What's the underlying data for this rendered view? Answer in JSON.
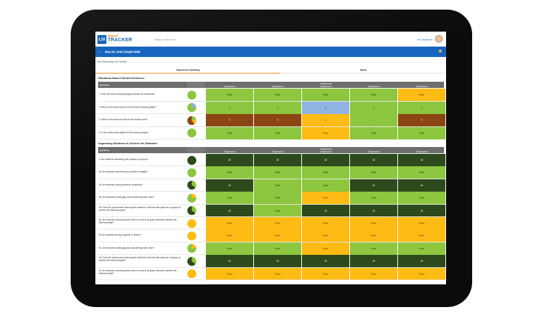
{
  "app": {
    "logo_mark": "LSI",
    "logo_line1": "Insert",
    "logo_line2": "TRACKER",
    "switch_tracker": "Switch Tracker ⊘",
    "user_greeting": "Hi Charles ▾"
  },
  "walk": {
    "title": "May 30, 2018 | Rapid Walk",
    "school": "York Elementary, AD District"
  },
  "tabs": [
    {
      "label": "Classroom Summary",
      "active": true
    },
    {
      "label": "Notes",
      "active": false
    }
  ],
  "colors": {
    "most": "#8dc63f",
    "all": "#2d4a1d",
    "some": "#fdbb13",
    "none_brown": "#8b4513",
    "blue": "#8fb4e3",
    "header": "#6d6d6d",
    "brand_blue": "#1565c0",
    "brand_orange": "#f28c28"
  },
  "sections": [
    {
      "title": "Standards-Based Student Evidence",
      "header": {
        "questions": "Questions",
        "classrooms": "Classrooms",
        "classroom_labels": [
          "Classroom 1",
          "Classroom 2",
          "Classroom 3",
          "Classroom 4",
          "Classroom 5"
        ]
      },
      "rows": [
        {
          "q": "1. Does the lesson learning target address the standards?",
          "pie": "most",
          "cells": [
            [
              "Most",
              "most"
            ],
            [
              "Most",
              "most"
            ],
            [
              "Most",
              "most"
            ],
            [
              "Most",
              "most"
            ],
            [
              "Some",
              "some"
            ]
          ]
        },
        {
          "q": "2. What is the taxonomy level of the lesson learning target?",
          "pie": "most-blue",
          "cells": [
            [
              "C",
              "most"
            ],
            [
              "C",
              "most"
            ],
            [
              "A",
              "blue"
            ],
            [
              "C",
              "most"
            ],
            [
              "C",
              "most"
            ]
          ]
        },
        {
          "q": "3. What is the taxonomy level of the student work?",
          "pie": "brown",
          "cells": [
            [
              "R",
              "none_brown"
            ],
            [
              "R",
              "none_brown"
            ],
            [
              "A",
              "some"
            ],
            [
              "C",
              "most"
            ],
            [
              "R",
              "none_brown"
            ]
          ]
        },
        {
          "q": "4. Is the student task aligned to the learning target?",
          "pie": "most",
          "cells": [
            [
              "Most",
              "most"
            ],
            [
              "Most",
              "most"
            ],
            [
              "Some",
              "some"
            ],
            [
              "Most",
              "most"
            ],
            [
              "Most",
              "most"
            ]
          ]
        }
      ]
    },
    {
      "title": "Organizing Students to Achieve the Standard",
      "header": {
        "questions": "Questions",
        "classrooms": "Classrooms",
        "classroom_labels": [
          "Classroom 1",
          "Classroom 2",
          "Classroom 3",
          "Classroom 4",
          "Classroom 5"
        ]
      },
      "rows": [
        {
          "q": "5. Are students interacting with partners or groups?",
          "pie": "all",
          "cells": [
            [
              "All",
              "all"
            ],
            [
              "All",
              "all"
            ],
            [
              "All",
              "all"
            ],
            [
              "All",
              "all"
            ],
            [
              "All",
              "all"
            ]
          ]
        },
        {
          "q": "5a. Are students experiencing productive struggle?",
          "pie": "most",
          "cells": [
            [
              "Most",
              "most"
            ],
            [
              "Most",
              "most"
            ],
            [
              "Most",
              "most"
            ],
            [
              "Most",
              "most"
            ],
            [
              "Most",
              "most"
            ]
          ]
        },
        {
          "q": "5b. Are students using academic vocabulary?",
          "pie": "all-most",
          "cells": [
            [
              "All",
              "all"
            ],
            [
              "Most",
              "most"
            ],
            [
              "Most",
              "most"
            ],
            [
              "All",
              "all"
            ],
            [
              "All",
              "all"
            ]
          ]
        },
        {
          "q": "5b. Are students challenging and questioning each other?",
          "pie": "most-some",
          "cells": [
            [
              "Most",
              "most"
            ],
            [
              "Most",
              "most"
            ],
            [
              "Some",
              "some"
            ],
            [
              "Most",
              "most"
            ],
            [
              "Most",
              "most"
            ]
          ]
        },
        {
          "q": "5d. Does the performance task require students to interact with partners or groups to achieve the learning target?",
          "pie": "all-most",
          "cells": [
            [
              "All",
              "all"
            ],
            [
              "Most",
              "most"
            ],
            [
              "All",
              "all"
            ],
            [
              "All",
              "all"
            ],
            [
              "All",
              "all"
            ]
          ]
        },
        {
          "q": "5e. Are students monitoring each other to ensure all group members achieve the learning target?",
          "pie": "some",
          "cells": [
            [
              "Some",
              "some"
            ],
            [
              "Some",
              "some"
            ],
            [
              "Some",
              "some"
            ],
            [
              "Some",
              "some"
            ],
            [
              "Some",
              "some"
            ]
          ]
        },
        {
          "q": "5f. Are students working together in teams?",
          "pie": "some",
          "cells": [
            [
              "Some",
              "some"
            ],
            [
              "Some",
              "some"
            ],
            [
              "Some",
              "some"
            ],
            [
              "Some",
              "some"
            ],
            [
              "Some",
              "some"
            ]
          ]
        },
        {
          "q": "5c. Are students challenging and questioning each other?",
          "pie": "most-some",
          "cells": [
            [
              "Most",
              "most"
            ],
            [
              "Most",
              "most"
            ],
            [
              "Some",
              "some"
            ],
            [
              "Most",
              "most"
            ],
            [
              "Most",
              "most"
            ]
          ]
        },
        {
          "q": "5d. Does the performance task require students to interact with partners or groups to achieve the learning target?",
          "pie": "all-most",
          "cells": [
            [
              "All",
              "all"
            ],
            [
              "All",
              "all"
            ],
            [
              "All",
              "all"
            ],
            [
              "All",
              "all"
            ],
            [
              "All",
              "all"
            ]
          ]
        },
        {
          "q": "5e. Are students monitoring each other to ensure all group members achieve the learning target?",
          "pie": "some",
          "cells": [
            [
              "Some",
              "some"
            ],
            [
              "Some",
              "some"
            ],
            [
              "Some",
              "some"
            ],
            [
              "Some",
              "some"
            ],
            [
              "Some",
              "some"
            ]
          ]
        }
      ]
    }
  ]
}
